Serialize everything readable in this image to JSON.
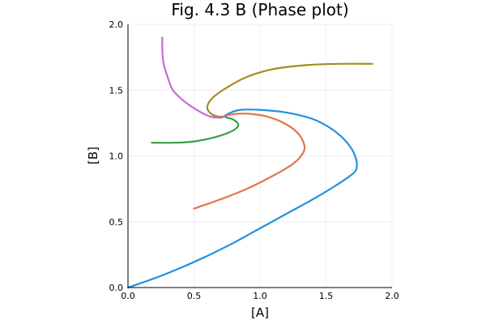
{
  "chart_data": {
    "type": "line",
    "title": "Fig. 4.3 B (Phase plot)",
    "xlabel": "[A]",
    "ylabel": "[B]",
    "xlim": [
      0,
      2
    ],
    "ylim": [
      0,
      2
    ],
    "xticks": [
      "0.0",
      "0.5",
      "1.0",
      "1.5",
      "2.0"
    ],
    "yticks": [
      "0.0",
      "0.5",
      "1.0",
      "1.5",
      "2.0"
    ],
    "grid": true,
    "legend": "none",
    "series": [
      {
        "color": "#1f92de",
        "points": [
          [
            0.0,
            0.0
          ],
          [
            0.2,
            0.07
          ],
          [
            0.4,
            0.15
          ],
          [
            0.6,
            0.24
          ],
          [
            0.8,
            0.34
          ],
          [
            1.0,
            0.45
          ],
          [
            1.2,
            0.56
          ],
          [
            1.4,
            0.67
          ],
          [
            1.55,
            0.76
          ],
          [
            1.67,
            0.84
          ],
          [
            1.73,
            0.9
          ],
          [
            1.72,
            1.0
          ],
          [
            1.66,
            1.1
          ],
          [
            1.55,
            1.2
          ],
          [
            1.4,
            1.28
          ],
          [
            1.2,
            1.33
          ],
          [
            1.0,
            1.35
          ],
          [
            0.85,
            1.35
          ],
          [
            0.78,
            1.33
          ],
          [
            0.74,
            1.31
          ],
          [
            0.73,
            1.3
          ]
        ]
      },
      {
        "color": "#e0754c",
        "points": [
          [
            0.5,
            0.6
          ],
          [
            0.7,
            0.67
          ],
          [
            0.9,
            0.75
          ],
          [
            1.1,
            0.85
          ],
          [
            1.25,
            0.94
          ],
          [
            1.33,
            1.03
          ],
          [
            1.33,
            1.1
          ],
          [
            1.28,
            1.18
          ],
          [
            1.18,
            1.25
          ],
          [
            1.05,
            1.3
          ],
          [
            0.92,
            1.32
          ],
          [
            0.82,
            1.32
          ],
          [
            0.76,
            1.31
          ],
          [
            0.73,
            1.3
          ]
        ]
      },
      {
        "color": "#3a9e49",
        "points": [
          [
            0.18,
            1.1
          ],
          [
            0.35,
            1.1
          ],
          [
            0.5,
            1.11
          ],
          [
            0.65,
            1.14
          ],
          [
            0.77,
            1.18
          ],
          [
            0.83,
            1.22
          ],
          [
            0.83,
            1.25
          ],
          [
            0.79,
            1.28
          ],
          [
            0.75,
            1.29
          ],
          [
            0.73,
            1.3
          ]
        ]
      },
      {
        "color": "#a58b1e",
        "points": [
          [
            1.85,
            1.7
          ],
          [
            1.6,
            1.7
          ],
          [
            1.35,
            1.69
          ],
          [
            1.1,
            1.66
          ],
          [
            0.9,
            1.6
          ],
          [
            0.75,
            1.52
          ],
          [
            0.64,
            1.44
          ],
          [
            0.6,
            1.37
          ],
          [
            0.63,
            1.32
          ],
          [
            0.68,
            1.3
          ],
          [
            0.73,
            1.3
          ]
        ]
      },
      {
        "color": "#c56bd6",
        "points": [
          [
            0.26,
            1.9
          ],
          [
            0.26,
            1.8
          ],
          [
            0.27,
            1.7
          ],
          [
            0.3,
            1.6
          ],
          [
            0.34,
            1.5
          ],
          [
            0.42,
            1.42
          ],
          [
            0.52,
            1.35
          ],
          [
            0.62,
            1.3
          ],
          [
            0.7,
            1.29
          ],
          [
            0.73,
            1.3
          ]
        ]
      }
    ]
  }
}
